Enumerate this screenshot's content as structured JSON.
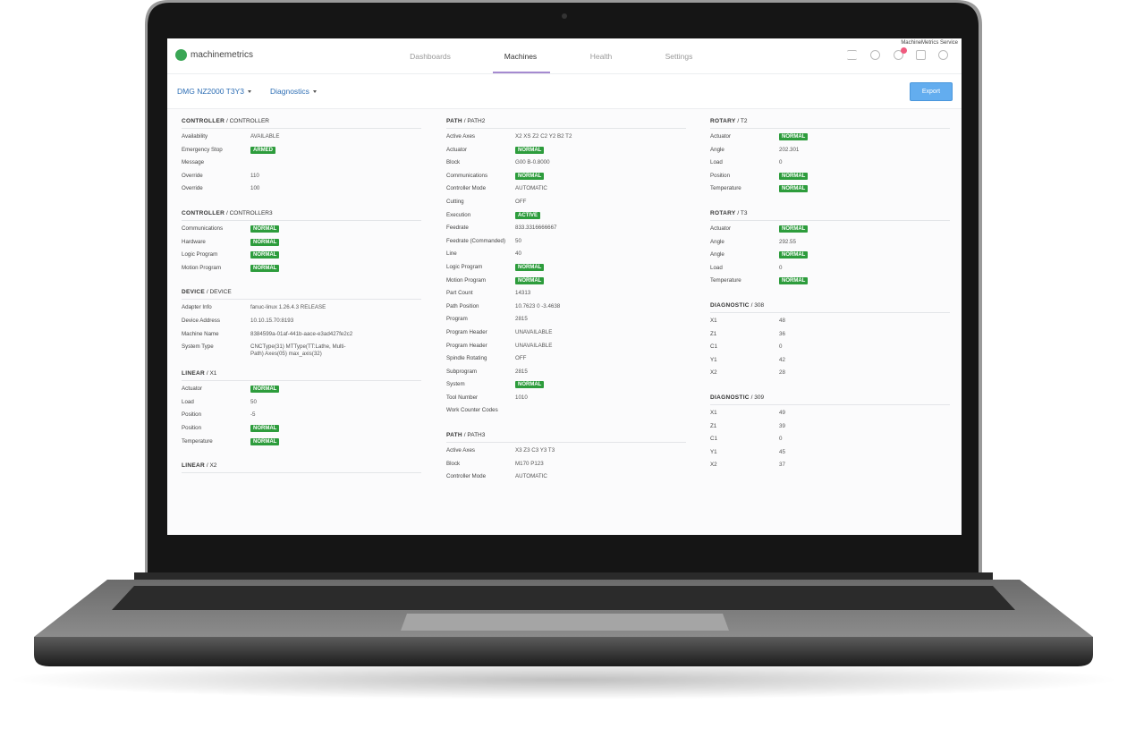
{
  "nav": {
    "brand": "machinemetrics",
    "tabs": [
      "Dashboards",
      "Machines",
      "Health",
      "Settings"
    ],
    "service": "MachineMetrics Service"
  },
  "toolbar": {
    "machine": "DMG NZ2000 T3Y3",
    "view": "Diagnostics",
    "export": "Export"
  },
  "separator": "/",
  "columns": [
    [
      {
        "group": "CONTROLLER",
        "name": "CONTROLLER",
        "rows": [
          {
            "label": "Availability",
            "value": "AVAILABLE"
          },
          {
            "label": "Emergency Stop",
            "value": "ARMED",
            "badge": true
          },
          {
            "label": "Message"
          },
          {
            "label": "Override",
            "value": "110"
          },
          {
            "label": "Override",
            "value": "100"
          }
        ]
      },
      {
        "group": "CONTROLLER",
        "name": "CONTROLLER3",
        "rows": [
          {
            "label": "Communications",
            "value": "NORMAL",
            "badge": true
          },
          {
            "label": "Hardware",
            "value": "NORMAL",
            "badge": true
          },
          {
            "label": "Logic Program",
            "value": "NORMAL",
            "badge": true
          },
          {
            "label": "Motion Program",
            "value": "NORMAL",
            "badge": true
          }
        ]
      },
      {
        "group": "DEVICE",
        "name": "DEVICE",
        "rows": [
          {
            "label": "Adapter Info",
            "value": "fanuc-linux 1.26.4.3 RELEASE"
          },
          {
            "label": "Device Address",
            "value": "10.10.15.70:8193"
          },
          {
            "label": "Machine Name",
            "value": "8384599a-01af-441b-aace-e3ad427fe2c2"
          },
          {
            "label": "System Type",
            "value": "CNCType(31) MTType(TT:Lathe, Multi-Path) Axes(05) max_axis(32)"
          }
        ]
      },
      {
        "group": "LINEAR",
        "name": "X1",
        "rows": [
          {
            "label": "Actuator",
            "value": "NORMAL",
            "badge": true
          },
          {
            "label": "Load",
            "value": "50"
          },
          {
            "label": "Position",
            "value": "-5"
          },
          {
            "label": "Position",
            "value": "NORMAL",
            "badge": true
          },
          {
            "label": "Temperature",
            "value": "NORMAL",
            "badge": true
          }
        ]
      },
      {
        "group": "LINEAR",
        "name": "X2",
        "rows": []
      }
    ],
    [
      {
        "group": "PATH",
        "name": "PATH2",
        "rows": [
          {
            "label": "Active Axes",
            "value": "X2 XS Z2 C2 Y2 B2 T2"
          },
          {
            "label": "Actuator",
            "value": "NORMAL",
            "badge": true
          },
          {
            "label": "Block",
            "value": "G00 B-0.8000"
          },
          {
            "label": "Communications",
            "value": "NORMAL",
            "badge": true
          },
          {
            "label": "Controller Mode",
            "value": "AUTOMATIC"
          },
          {
            "label": "Cutting",
            "value": "OFF"
          },
          {
            "label": "Execution",
            "value": "ACTIVE",
            "badge": true
          },
          {
            "label": "Feedrate",
            "value": "833.3316666667"
          },
          {
            "label": "Feedrate (Commanded)",
            "value": "50"
          },
          {
            "label": "Line",
            "value": "40"
          },
          {
            "label": "Logic Program",
            "value": "NORMAL",
            "badge": true
          },
          {
            "label": "Motion Program",
            "value": "NORMAL",
            "badge": true
          },
          {
            "label": "Part Count",
            "value": "14313"
          },
          {
            "label": "Path Position",
            "value": "10.7623 0 -3.4638"
          },
          {
            "label": "Program",
            "value": "2815"
          },
          {
            "label": "Program Header",
            "value": "UNAVAILABLE"
          },
          {
            "label": "Program Header",
            "value": "UNAVAILABLE"
          },
          {
            "label": "Spindle Rotating",
            "value": "OFF"
          },
          {
            "label": "Subprogram",
            "value": "2815"
          },
          {
            "label": "System",
            "value": "NORMAL",
            "badge": true
          },
          {
            "label": "Tool Number",
            "value": "1010"
          },
          {
            "label": "Work Counter Codes"
          }
        ]
      },
      {
        "group": "PATH",
        "name": "PATH3",
        "rows": [
          {
            "label": "Active Axes",
            "value": "X3 Z3 C3 Y3 T3"
          },
          {
            "label": "Block",
            "value": "M170 P123"
          },
          {
            "label": "Controller Mode",
            "value": "AUTOMATIC"
          }
        ]
      }
    ],
    [
      {
        "group": "ROTARY",
        "name": "T2",
        "rows": [
          {
            "label": "Actuator",
            "value": "NORMAL",
            "badge": true
          },
          {
            "label": "Angle",
            "value": "202.301"
          },
          {
            "label": "Load",
            "value": "0"
          },
          {
            "label": "Position",
            "value": "NORMAL",
            "badge": true
          },
          {
            "label": "Temperature",
            "value": "NORMAL",
            "badge": true
          }
        ]
      },
      {
        "group": "ROTARY",
        "name": "T3",
        "rows": [
          {
            "label": "Actuator",
            "value": "NORMAL",
            "badge": true
          },
          {
            "label": "Angle",
            "value": "292.55"
          },
          {
            "label": "Angle",
            "value": "NORMAL",
            "badge": true
          },
          {
            "label": "Load",
            "value": "0"
          },
          {
            "label": "Temperature",
            "value": "NORMAL",
            "badge": true
          }
        ]
      },
      {
        "group": "DIAGNOSTIC",
        "name": "308",
        "rows": [
          {
            "label": "X1",
            "value": "48"
          },
          {
            "label": "Z1",
            "value": "36"
          },
          {
            "label": "C1",
            "value": "0"
          },
          {
            "label": "Y1",
            "value": "42"
          },
          {
            "label": "X2",
            "value": "28"
          }
        ]
      },
      {
        "group": "DIAGNOSTIC",
        "name": "309",
        "rows": [
          {
            "label": "X1",
            "value": "49"
          },
          {
            "label": "Z1",
            "value": "39"
          },
          {
            "label": "C1",
            "value": "0"
          },
          {
            "label": "Y1",
            "value": "45"
          },
          {
            "label": "X2",
            "value": "37"
          }
        ]
      }
    ]
  ]
}
